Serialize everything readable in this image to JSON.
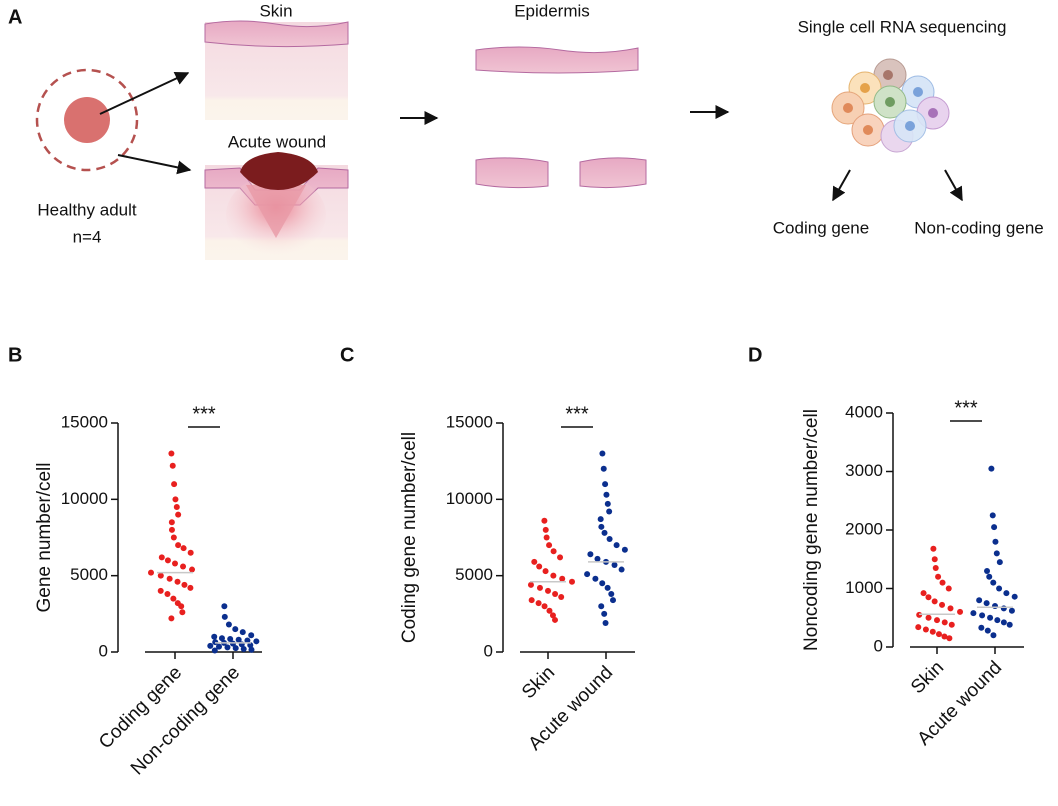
{
  "panel_a": {
    "label": "A",
    "skin": "Skin",
    "acute_wound": "Acute wound",
    "healthy_adult": "Healthy adult",
    "n": "n=4",
    "epidermis": "Epidermis",
    "sequencing": "Single cell RNA sequencing",
    "coding": "Coding gene",
    "non_coding": "Non-coding gene"
  },
  "chart_data": [
    {
      "type": "beeswarm",
      "panel_label": "B",
      "ylabel": "Gene number/cell",
      "categories": [
        "Coding gene",
        "Non-coding gene"
      ],
      "colors": [
        "#e8201f",
        "#0b2f8e"
      ],
      "points": [
        [
          13000,
          12200,
          11000,
          10000,
          9500,
          9000,
          8500,
          8000,
          7500,
          7000,
          6800,
          6500,
          6200,
          6000,
          5800,
          5600,
          5400,
          5200,
          5000,
          4800,
          4600,
          4400,
          4200,
          4000,
          3800,
          3500,
          3200,
          3000,
          2600,
          2200
        ],
        [
          3000,
          2300,
          1800,
          1500,
          1300,
          1100,
          1000,
          900,
          850,
          800,
          750,
          700,
          650,
          600,
          550,
          500,
          450,
          400,
          350,
          300,
          250,
          200,
          150,
          100
        ]
      ],
      "means": [
        5200,
        600
      ],
      "annotation": "***",
      "ylim": [
        0,
        15000
      ],
      "yticks": [
        0,
        5000,
        10000,
        15000
      ]
    },
    {
      "type": "beeswarm",
      "panel_label": "C",
      "ylabel": "Coding gene number/cell",
      "categories": [
        "Skin",
        "Acute wound"
      ],
      "colors": [
        "#e8201f",
        "#0b2f8e"
      ],
      "points": [
        [
          8600,
          8000,
          7500,
          7000,
          6600,
          6200,
          5900,
          5600,
          5300,
          5000,
          4800,
          4600,
          4400,
          4200,
          4000,
          3800,
          3600,
          3400,
          3200,
          3000,
          2700,
          2400,
          2100
        ],
        [
          13000,
          12000,
          11000,
          10300,
          9700,
          9200,
          8700,
          8200,
          7800,
          7400,
          7000,
          6700,
          6400,
          6100,
          5900,
          5700,
          5400,
          5100,
          4800,
          4500,
          4200,
          3800,
          3400,
          3000,
          2500,
          1900
        ]
      ],
      "means": [
        4600,
        5900
      ],
      "annotation": "***",
      "ylim": [
        0,
        15000
      ],
      "yticks": [
        0,
        5000,
        10000,
        15000
      ]
    },
    {
      "type": "beeswarm",
      "panel_label": "D",
      "ylabel": "Noncoding gene number/cell",
      "categories": [
        "Skin",
        "Acute wound"
      ],
      "colors": [
        "#e8201f",
        "#0b2f8e"
      ],
      "points": [
        [
          1680,
          1500,
          1350,
          1200,
          1100,
          1000,
          920,
          850,
          780,
          720,
          660,
          600,
          550,
          500,
          460,
          420,
          380,
          340,
          300,
          260,
          220,
          180,
          150
        ],
        [
          3050,
          2250,
          2050,
          1800,
          1600,
          1450,
          1300,
          1200,
          1100,
          1000,
          920,
          860,
          800,
          750,
          700,
          660,
          620,
          580,
          540,
          500,
          460,
          420,
          380,
          330,
          280,
          200
        ]
      ],
      "means": [
        560,
        680
      ],
      "annotation": "***",
      "ylim": [
        0,
        4000
      ],
      "yticks": [
        0,
        1000,
        2000,
        3000,
        4000
      ]
    }
  ]
}
